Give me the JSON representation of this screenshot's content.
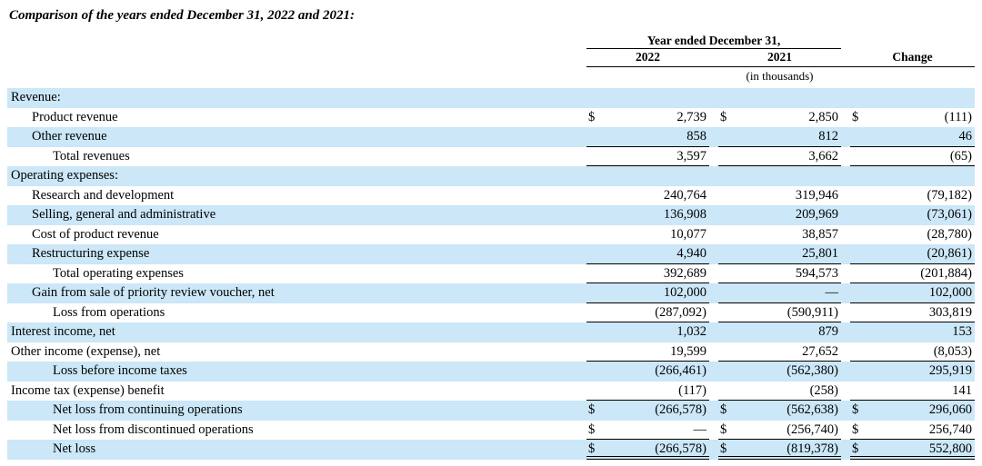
{
  "title": "Comparison of the years ended December 31, 2022 and 2021:",
  "table": {
    "columns": {
      "group_label": "Year ended December 31,",
      "col1": "2022",
      "col2": "2021",
      "col3": "Change",
      "units_note": "(in thousands)"
    },
    "rows": [
      {
        "label": "Revenue:",
        "indent": 0,
        "shaded": true,
        "dollar": false,
        "values": [
          "",
          "",
          ""
        ],
        "border": "none"
      },
      {
        "label": "Product revenue",
        "indent": 1,
        "shaded": false,
        "dollar": true,
        "values": [
          "2,739",
          "2,850",
          "(111)"
        ],
        "border": "none"
      },
      {
        "label": "Other revenue",
        "indent": 1,
        "shaded": true,
        "dollar": false,
        "values": [
          "858",
          "812",
          "46"
        ],
        "border": "single"
      },
      {
        "label": "Total revenues",
        "indent": 2,
        "shaded": false,
        "dollar": false,
        "values": [
          "3,597",
          "3,662",
          "(65)"
        ],
        "border": "single"
      },
      {
        "label": "Operating expenses:",
        "indent": 0,
        "shaded": true,
        "dollar": false,
        "values": [
          "",
          "",
          ""
        ],
        "border": "none"
      },
      {
        "label": "Research and development",
        "indent": 1,
        "shaded": false,
        "dollar": false,
        "values": [
          "240,764",
          "319,946",
          "(79,182)"
        ],
        "border": "none"
      },
      {
        "label": "Selling, general and administrative",
        "indent": 1,
        "shaded": true,
        "dollar": false,
        "values": [
          "136,908",
          "209,969",
          "(73,061)"
        ],
        "border": "none"
      },
      {
        "label": "Cost of product revenue",
        "indent": 1,
        "shaded": false,
        "dollar": false,
        "values": [
          "10,077",
          "38,857",
          "(28,780)"
        ],
        "border": "none"
      },
      {
        "label": "Restructuring expense",
        "indent": 1,
        "shaded": true,
        "dollar": false,
        "values": [
          "4,940",
          "25,801",
          "(20,861)"
        ],
        "border": "single"
      },
      {
        "label": "Total operating expenses",
        "indent": 2,
        "shaded": false,
        "dollar": false,
        "values": [
          "392,689",
          "594,573",
          "(201,884)"
        ],
        "border": "single"
      },
      {
        "label": "Gain from sale of priority review voucher, net",
        "indent": 1,
        "shaded": true,
        "dollar": false,
        "values": [
          "102,000",
          "—",
          "102,000"
        ],
        "border": "single"
      },
      {
        "label": "Loss from operations",
        "indent": 2,
        "shaded": false,
        "dollar": false,
        "values": [
          "(287,092)",
          "(590,911)",
          "303,819"
        ],
        "border": "single"
      },
      {
        "label": "Interest income, net",
        "indent": 0,
        "shaded": true,
        "dollar": false,
        "values": [
          "1,032",
          "879",
          "153"
        ],
        "border": "none"
      },
      {
        "label": "Other income (expense), net",
        "indent": 0,
        "shaded": false,
        "dollar": false,
        "values": [
          "19,599",
          "27,652",
          "(8,053)"
        ],
        "border": "single"
      },
      {
        "label": "Loss before income taxes",
        "indent": 2,
        "shaded": true,
        "dollar": false,
        "values": [
          "(266,461)",
          "(562,380)",
          "295,919"
        ],
        "border": "none"
      },
      {
        "label": "Income tax (expense) benefit",
        "indent": 0,
        "shaded": false,
        "dollar": false,
        "values": [
          "(117)",
          "(258)",
          "141"
        ],
        "border": "single"
      },
      {
        "label": "Net loss from continuing operations",
        "indent": 2,
        "shaded": true,
        "dollar": true,
        "values": [
          "(266,578)",
          "(562,638)",
          "296,060"
        ],
        "border": "none"
      },
      {
        "label": "Net loss from discontinued operations",
        "indent": 2,
        "shaded": false,
        "dollar": true,
        "values": [
          "—",
          "(256,740)",
          "256,740"
        ],
        "border": "single"
      },
      {
        "label": "Net loss",
        "indent": 2,
        "shaded": true,
        "dollar": true,
        "values": [
          "(266,578)",
          "(819,378)",
          "552,800"
        ],
        "border": "double"
      }
    ]
  },
  "colors": {
    "row_highlight": "#cbe7f8",
    "rule_color": "#000000",
    "text_color": "#000000"
  }
}
